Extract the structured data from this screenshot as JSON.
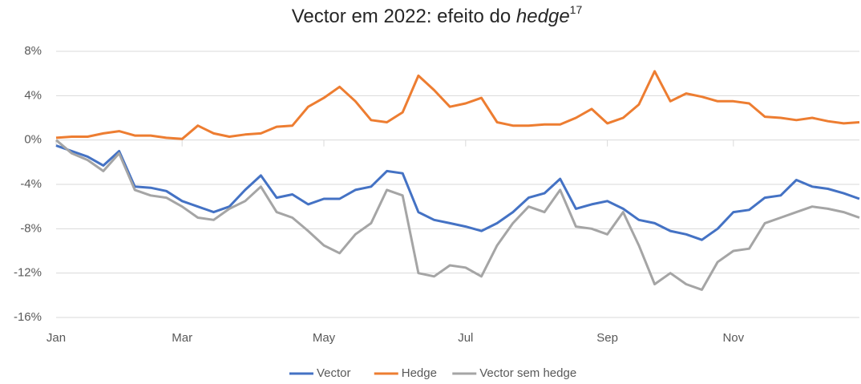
{
  "chart_data": {
    "type": "line",
    "title_parts": [
      "Vector em 2022: efeito do ",
      "hedge",
      "17"
    ],
    "categories": [
      "Jan",
      null,
      null,
      null,
      null,
      null,
      null,
      null,
      "Mar",
      null,
      null,
      null,
      null,
      null,
      null,
      null,
      null,
      "May",
      null,
      null,
      null,
      null,
      null,
      null,
      null,
      null,
      "Jul",
      null,
      null,
      null,
      null,
      null,
      null,
      null,
      null,
      "Sep",
      null,
      null,
      null,
      null,
      null,
      null,
      null,
      "Nov",
      null,
      null,
      null,
      null,
      null,
      null,
      null,
      null
    ],
    "series": [
      {
        "name": "Vector",
        "color": "#4472c4",
        "values": [
          -0.5,
          -1,
          -1.5,
          -2.3,
          -1.0,
          -4.2,
          -4.3,
          -4.6,
          -5.5,
          -6.0,
          -6.5,
          -6.0,
          -4.5,
          -3.2,
          -5.2,
          -4.9,
          -5.8,
          -5.3,
          -5.3,
          -4.5,
          -4.2,
          -2.8,
          -3.0,
          -6.5,
          -7.2,
          -7.5,
          -7.8,
          -8.2,
          -7.5,
          -6.5,
          -5.2,
          -4.8,
          -3.5,
          -6.2,
          -5.8,
          -5.5,
          -6.2,
          -7.2,
          -7.5,
          -8.2,
          -8.5,
          -9.0,
          -8.0,
          -6.5,
          -6.3,
          -5.2,
          -5.0,
          -3.6,
          -4.2,
          -4.4,
          -4.8,
          -5.3
        ]
      },
      {
        "name": "Hedge",
        "color": "#ed7d31",
        "values": [
          0.2,
          0.3,
          0.3,
          0.6,
          0.8,
          0.4,
          0.4,
          0.2,
          0.1,
          1.3,
          0.6,
          0.3,
          0.5,
          0.6,
          1.2,
          1.3,
          3.0,
          3.8,
          4.8,
          3.5,
          1.8,
          1.6,
          2.5,
          5.8,
          4.5,
          3.0,
          3.3,
          3.8,
          1.6,
          1.3,
          1.3,
          1.4,
          1.4,
          2.0,
          2.8,
          1.5,
          2.0,
          3.2,
          6.2,
          3.5,
          4.2,
          3.9,
          3.5,
          3.5,
          3.3,
          2.1,
          2.0,
          1.8,
          2.0,
          1.7,
          1.5,
          1.6
        ]
      },
      {
        "name": "Vector sem hedge",
        "color": "#a5a5a5",
        "values": [
          0,
          -1.2,
          -1.8,
          -2.8,
          -1.2,
          -4.5,
          -5,
          -5.2,
          -6,
          -7,
          -7.2,
          -6.2,
          -5.5,
          -4.2,
          -6.5,
          -7,
          -8.2,
          -9.5,
          -10.2,
          -8.5,
          -7.5,
          -4.5,
          -5,
          -12,
          -12.3,
          -11.3,
          -11.5,
          -12.3,
          -9.5,
          -7.5,
          -6,
          -6.5,
          -4.5,
          -7.8,
          -8,
          -8.5,
          -6.5,
          -9.5,
          -13,
          -12,
          -13,
          -13.5,
          -11,
          -10,
          -9.8,
          -7.5,
          -7,
          -6.5,
          -6,
          -6.2,
          -6.5,
          -7.0
        ]
      }
    ],
    "ylim": [
      -16,
      8
    ],
    "yticks": [
      {
        "value": -16,
        "label": "-16%"
      },
      {
        "value": -12,
        "label": "-12%"
      },
      {
        "value": -8,
        "label": "-8%"
      },
      {
        "value": -4,
        "label": "-4%"
      },
      {
        "value": 0,
        "label": "0%"
      },
      {
        "value": 4,
        "label": "4%"
      },
      {
        "value": 8,
        "label": "8%"
      }
    ],
    "grid": true,
    "legend": "bottom"
  }
}
